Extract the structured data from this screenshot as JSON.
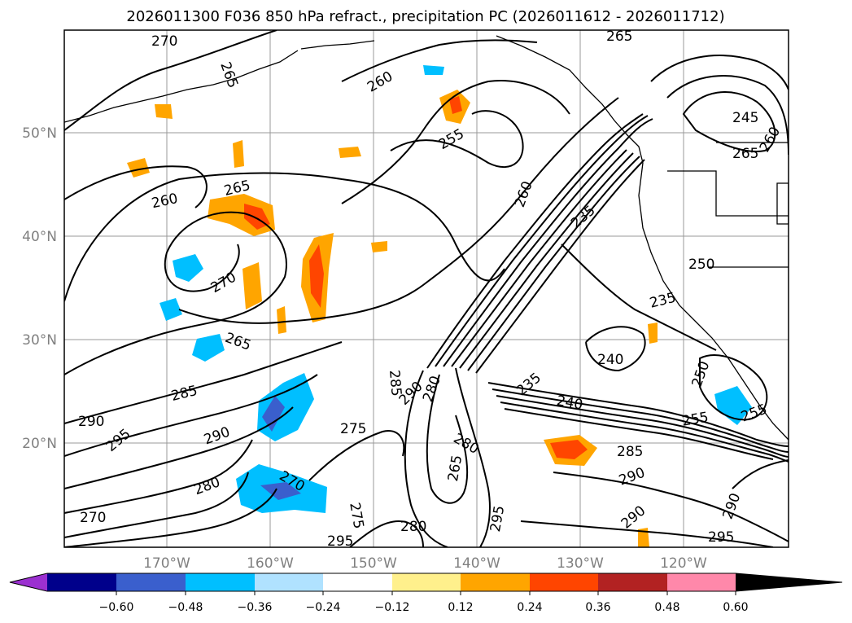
{
  "title": "2026011300 F036 850 hPa refract., precipitation PC (2026011612 - 2026011712)",
  "map": {
    "lat_labels": [
      "50°N",
      "40°N",
      "30°N",
      "20°N"
    ],
    "lon_labels": [
      "170°W",
      "160°W",
      "150°W",
      "140°W",
      "130°W",
      "120°W"
    ],
    "contour_labels": [
      "270",
      "265",
      "260",
      "255",
      "260",
      "265",
      "265",
      "260",
      "270",
      "265",
      "285",
      "290",
      "295",
      "290",
      "280",
      "275",
      "270",
      "290",
      "285",
      "280",
      "275",
      "280",
      "295",
      "295",
      "290",
      "290",
      "285",
      "265",
      "270",
      "280",
      "235",
      "240",
      "235",
      "240",
      "245",
      "250",
      "255",
      "265",
      "255",
      "260",
      "250",
      "235",
      "290",
      "295"
    ]
  },
  "colorbar": {
    "colors": [
      "#9b30d0",
      "#00008b",
      "#3a5fcd",
      "#00bfff",
      "#b0e2ff",
      "#ffffff",
      "#fff08c",
      "#ffa500",
      "#ff4500",
      "#b22222",
      "#ff88aa"
    ],
    "ticks": [
      "−0.60",
      "−0.48",
      "−0.36",
      "−0.24",
      "−0.12",
      "0.12",
      "0.24",
      "0.36",
      "0.48",
      "0.60"
    ]
  }
}
